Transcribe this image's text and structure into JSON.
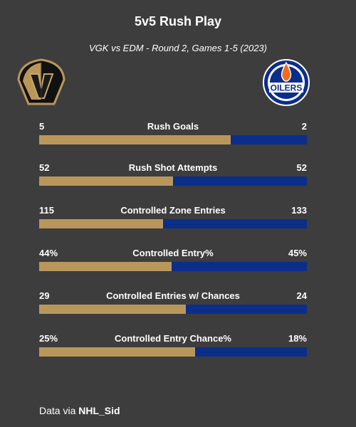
{
  "header": {
    "title": "5v5 Rush Play",
    "subtitle": "VGK vs EDM - Round 2, Games 1-5 (2023)"
  },
  "teams": {
    "left": {
      "logo_icon": "vegas-golden-knights-helmet-logo",
      "color": "#b9975b"
    },
    "right": {
      "logo_icon": "edmonton-oilers-logo",
      "color": "#0b2e8a",
      "logo_text": "OILERS"
    }
  },
  "chart_data": {
    "type": "bar",
    "orientation": "horizontal-stacked-share",
    "categories": [
      "Rush Goals",
      "Rush Shot Attempts",
      "Controlled Zone Entries",
      "Controlled Entry%",
      "Controlled Entries w/ Chances",
      "Controlled Entry Chance%"
    ],
    "series": [
      {
        "values": [
          5,
          52,
          115,
          44,
          29,
          25
        ],
        "labels": [
          "5",
          "52",
          "115",
          "44%",
          "29",
          "25%"
        ]
      },
      {
        "values": [
          2,
          52,
          133,
          45,
          24,
          18
        ],
        "labels": [
          "2",
          "52",
          "133",
          "45%",
          "24",
          "18%"
        ]
      }
    ]
  },
  "footer": {
    "prefix": "Data via",
    "source": "NHL_Sid"
  }
}
